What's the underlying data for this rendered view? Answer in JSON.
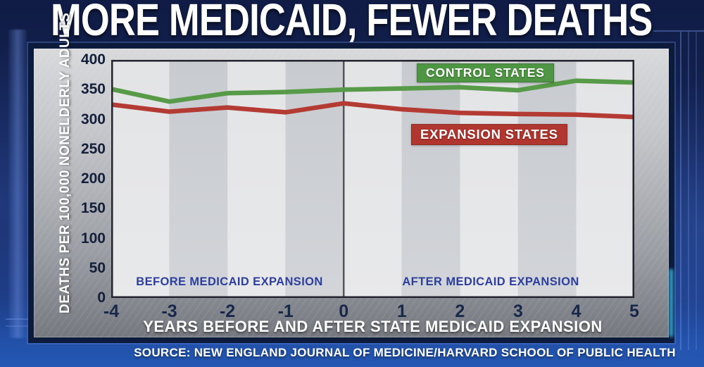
{
  "title": "MORE MEDICAID, FEWER DEATHS",
  "source": "SOURCE: NEW ENGLAND JOURNAL OF MEDICINE/HARVARD SCHOOL OF PUBLIC HEALTH",
  "annotations": {
    "before": "BEFORE MEDICAID EXPANSION",
    "after": "AFTER MEDICAID EXPANSION"
  },
  "colors": {
    "background_navy": "#16295f",
    "background_bright_blue": "#2458b4",
    "panel_border_navy": "#0c1a3c",
    "panel_gray_top": "#d8d9db",
    "panel_gray_bottom": "#75797f",
    "band_light": "#e3e4e6",
    "band_dark": "#c8cbd0",
    "plot_border": "#23242f",
    "zero_line": "#54555c",
    "tick_text_navy": "#17284a",
    "annotation_blue": "#2c3f9c",
    "control_green": "#4f9644",
    "control_line_green": "#579a48",
    "expansion_red": "#b0362f",
    "expansion_line_red": "#b43b33",
    "title_white": "#ffffff"
  },
  "chart_data": {
    "type": "line",
    "title": "MORE MEDICAID, FEWER DEATHS",
    "xlabel": "YEARS BEFORE AND AFTER STATE MEDICAID EXPANSION",
    "ylabel": "DEATHS PER 100,000 NONELDERLY ADULTS",
    "x": [
      -4,
      -3,
      -2,
      -1,
      0,
      1,
      2,
      3,
      4,
      5
    ],
    "ylim": [
      0,
      400
    ],
    "yticks": [
      400,
      350,
      300,
      250,
      200,
      150,
      100,
      50,
      0
    ],
    "grid": false,
    "band_colors": [
      "#e3e4e6",
      "#c8cbd0"
    ],
    "zero_line_x": 0,
    "legend_position": "inline-labels",
    "series": [
      {
        "name": "CONTROL STATES",
        "label_bg_color": "#4f9644",
        "line_color": "#579a48",
        "values": [
          351,
          330,
          344,
          346,
          350,
          352,
          354,
          349,
          365,
          362
        ]
      },
      {
        "name": "EXPANSION STATES",
        "label_bg_color": "#b0362f",
        "line_color": "#b43b33",
        "values": [
          325,
          313,
          320,
          312,
          327,
          317,
          311,
          309,
          308,
          304
        ]
      }
    ],
    "annotations": [
      "BEFORE MEDICAID EXPANSION",
      "AFTER MEDICAID EXPANSION"
    ]
  }
}
